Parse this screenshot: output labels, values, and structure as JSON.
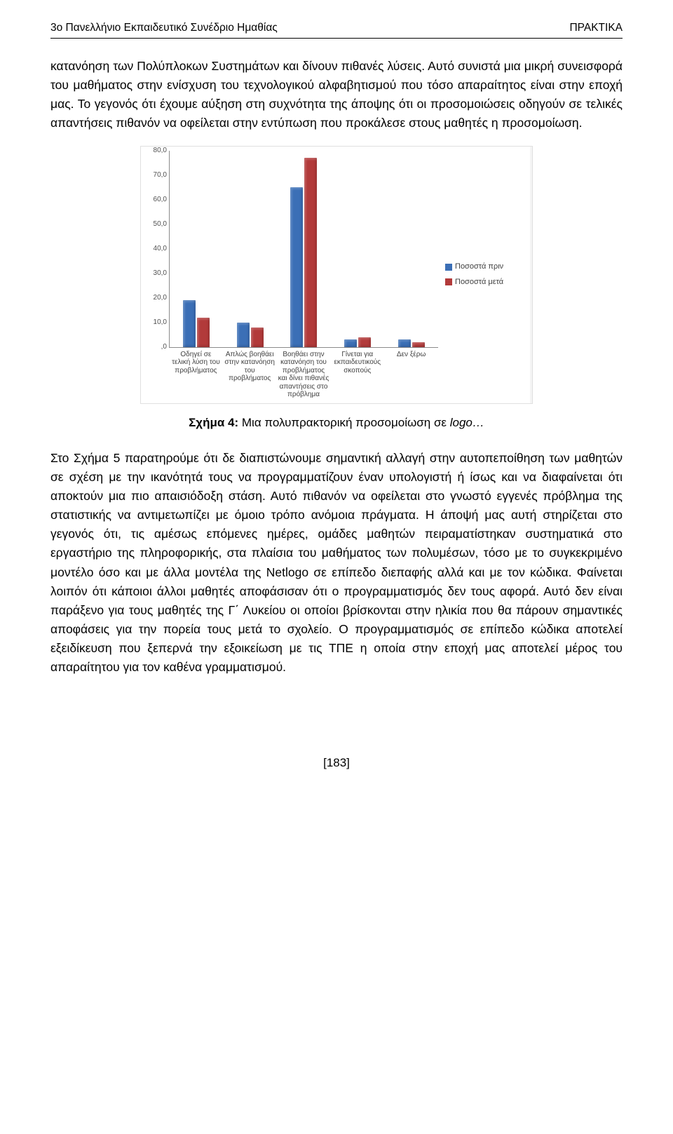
{
  "header": {
    "left": "3ο Πανελλήνιο Εκπαιδευτικό Συνέδριο Ημαθίας",
    "right": "ΠΡΑΚΤΙΚΑ"
  },
  "paragraph1": "κατανόηση των Πολύπλοκων Συστημάτων και δίνουν πιθανές λύσεις. Αυτό συνιστά μια μικρή συνεισφορά του μαθήματος στην ενίσχυση του τεχνολογικού αλφαβητισμού που τόσο απαραίτητος είναι στην εποχή μας. Το γεγονός ότι έχουμε αύξηση στη συχνότητα της άποψης ότι οι προσομοιώσεις οδηγούν σε τελικές απαντήσεις πιθανόν να οφείλεται στην εντύπωση που προκάλεσε στους μαθητές η προσομοίωση.",
  "chart": {
    "type": "bar",
    "ylim": [
      0,
      80
    ],
    "ytick_step": 10,
    "ytick_labels": [
      ",0",
      "10,0",
      "20,0",
      "30,0",
      "40,0",
      "50,0",
      "60,0",
      "70,0",
      "80,0"
    ],
    "background_color": "#ffffff",
    "axis_color": "#8a8a8a",
    "label_fontsize": 10,
    "series": [
      {
        "name": "Ποσοστά πριν",
        "color": "#3b6fb6"
      },
      {
        "name": "Ποσοστά μετά",
        "color": "#b23a3a"
      }
    ],
    "categories": [
      {
        "label": "Οδηγεί σε τελική λύση του προβλήματος",
        "values": [
          19,
          12
        ]
      },
      {
        "label": "Απλώς βοηθάει στην κατανόηση του προβλήματος",
        "values": [
          10,
          8
        ]
      },
      {
        "label": "Βοηθάει στην κατανόηση του προβλήματος και δίνει πιθανές απαντήσεις στο πρόβλημα",
        "values": [
          65,
          77
        ]
      },
      {
        "label": "Γίνεται για εκπαιδευτικούς σκοπούς",
        "values": [
          3,
          4
        ]
      },
      {
        "label": "Δεν ξέρω",
        "values": [
          3,
          2
        ]
      }
    ]
  },
  "caption_bold": "Σχήμα 4: ",
  "caption_plain": "Μια πολυπρακτορική προσομοίωση σε ",
  "caption_italic": "logo…",
  "paragraph2": "Στο Σχήμα 5 παρατηρούμε ότι δε διαπιστώνουμε σημαντική αλλαγή στην αυτοπεποίθηση των μαθητών σε σχέση με την ικανότητά τους να προγραμματίζουν έναν υπολογιστή ή ίσως και να διαφαίνεται ότι αποκτούν μια πιο απαισιόδοξη στάση. Αυτό πιθανόν να οφείλεται στο γνωστό εγγενές πρόβλημα της στατιστικής να αντιμετωπίζει με όμοιο τρόπο ανόμοια πράγματα. Η άποψή μας αυτή στηρίζεται στο γεγονός ότι, τις αμέσως επόμενες ημέρες, ομάδες μαθητών πειραματίστηκαν συστηματικά στο εργαστήριο της πληροφορικής, στα πλαίσια του μαθήματος των πολυμέσων, τόσο με το συγκεκριμένο μοντέλο όσο και με άλλα μοντέλα της Netlogo σε επίπεδο διεπαφής αλλά και με τον κώδικα. Φαίνεται λοιπόν ότι κάποιοι άλλοι μαθητές αποφάσισαν ότι ο προγραμματισμός δεν τους αφορά. Αυτό δεν είναι παράξενο για τους μαθητές της Γ΄ Λυκείου οι οποίοι βρίσκονται στην ηλικία που θα πάρουν σημαντικές αποφάσεις για την πορεία τους μετά το σχολείο. Ο προγραμματισμός σε επίπεδο κώδικα αποτελεί εξειδίκευση που ξεπερνά την εξοικείωση με τις ΤΠΕ η οποία στην εποχή μας αποτελεί μέρος του απαραίτητου για τον καθένα γραμματισμού.",
  "footer": "[183]"
}
